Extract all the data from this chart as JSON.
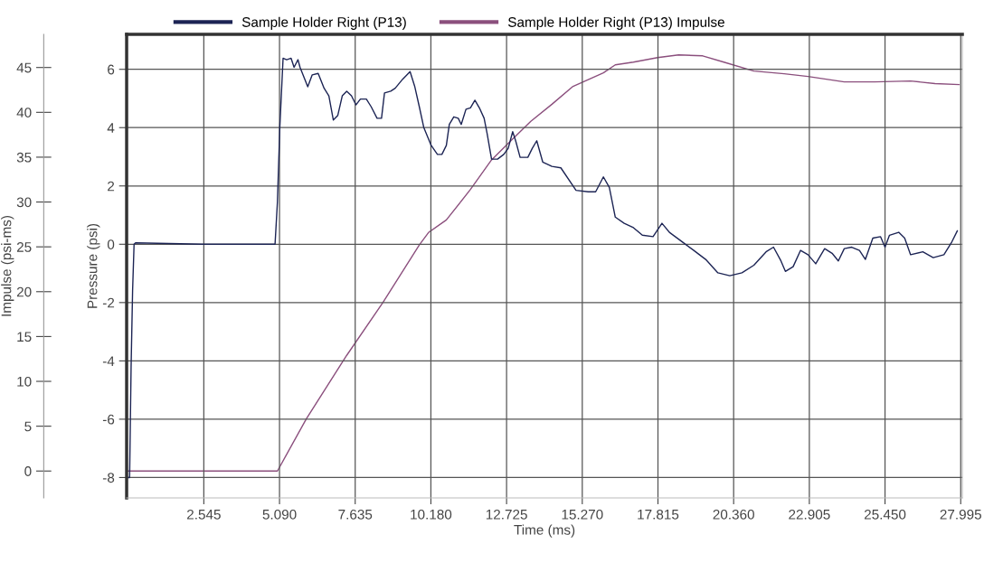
{
  "chart_data": {
    "type": "line",
    "xlabel": "Time (ms)",
    "ylabel": "Pressure (psi)",
    "y2label": "Impulse (psi-ms)",
    "xlim": [
      -0.05,
      28.05
    ],
    "xticks": [
      2.545,
      {
        "value": 5.09,
        "label": "5.090"
      },
      7.635,
      {
        "value": 10.18,
        "label": "10.180"
      },
      12.725,
      {
        "value": 15.27,
        "label": "15.270"
      },
      17.815,
      {
        "value": 20.36,
        "label": "20.360"
      },
      22.905,
      {
        "value": 25.45,
        "label": "25.450"
      },
      27.995
    ],
    "ylim": [
      -8.7,
      7.2
    ],
    "yticks": [
      -8,
      -6,
      -4,
      -2,
      0,
      2,
      4,
      6
    ],
    "y2lim": [
      -3,
      48.7
    ],
    "y2ticks": [
      0,
      5,
      10,
      15,
      20,
      25,
      30,
      35,
      40,
      45
    ],
    "grid": true,
    "legend": "top",
    "marker": "none",
    "line_style": "solid",
    "series": [
      {
        "name": "Sample Holder Right (P13)",
        "color": "#1c2454",
        "axis": "y",
        "x": [
          0,
          0.05,
          0.1,
          0.15,
          0.2,
          0.25,
          2.5,
          4.9,
          4.94,
          5.02,
          5.1,
          5.21,
          5.33,
          5.48,
          5.58,
          5.71,
          5.78,
          6.04,
          6.19,
          6.39,
          6.59,
          6.75,
          6.9,
          7.05,
          7.2,
          7.35,
          7.51,
          7.66,
          7.81,
          8.01,
          8.17,
          8.37,
          8.52,
          8.62,
          8.83,
          8.98,
          9.23,
          9.48,
          9.64,
          9.79,
          9.94,
          10.19,
          10.4,
          10.55,
          10.7,
          10.8,
          10.95,
          11.1,
          11.2,
          11.36,
          11.51,
          11.66,
          11.81,
          11.97,
          12.07,
          12.22,
          12.42,
          12.63,
          12.78,
          12.93,
          13.03,
          13.18,
          13.44,
          13.59,
          13.74,
          13.94,
          14.25,
          14.55,
          15.06,
          15.47,
          15.72,
          15.98,
          16.18,
          16.38,
          16.68,
          16.99,
          17.29,
          17.65,
          17.95,
          18.2,
          18.61,
          19.02,
          19.42,
          19.83,
          20.23,
          20.64,
          21.04,
          21.45,
          21.7,
          21.95,
          22.1,
          22.36,
          22.61,
          22.86,
          23.12,
          23.42,
          23.67,
          23.88,
          24.08,
          24.33,
          24.59,
          24.79,
          25.04,
          25.3,
          25.45,
          25.6,
          25.91,
          26.11,
          26.31,
          26.72,
          27.07,
          27.43,
          27.68,
          27.88
        ],
        "values": [
          -8.0,
          -8.0,
          -4.2,
          -1.6,
          0.0,
          0.05,
          0.0,
          0.0,
          0.0,
          1.45,
          4.0,
          6.38,
          6.33,
          6.38,
          6.07,
          6.33,
          6.07,
          5.4,
          5.81,
          5.86,
          5.35,
          5.09,
          4.26,
          4.42,
          5.09,
          5.25,
          5.09,
          4.78,
          4.98,
          4.98,
          4.72,
          4.32,
          4.32,
          5.19,
          5.25,
          5.35,
          5.66,
          5.92,
          5.4,
          4.72,
          4.01,
          3.39,
          3.08,
          3.08,
          3.39,
          4.11,
          4.37,
          4.32,
          4.11,
          4.63,
          4.68,
          4.94,
          4.68,
          4.32,
          3.8,
          2.92,
          2.92,
          3.08,
          3.29,
          3.86,
          3.55,
          2.98,
          2.98,
          3.29,
          3.55,
          2.82,
          2.67,
          2.62,
          1.85,
          1.8,
          1.8,
          2.31,
          1.95,
          0.93,
          0.72,
          0.57,
          0.31,
          0.26,
          0.72,
          0.41,
          0.1,
          -0.21,
          -0.52,
          -0.98,
          -1.08,
          -0.98,
          -0.72,
          -0.26,
          -0.1,
          -0.57,
          -0.93,
          -0.77,
          -0.21,
          -0.36,
          -0.67,
          -0.15,
          -0.31,
          -0.57,
          -0.15,
          -0.1,
          -0.21,
          -0.52,
          0.21,
          0.26,
          -0.1,
          0.31,
          0.41,
          0.21,
          -0.36,
          -0.26,
          -0.46,
          -0.36,
          0.05,
          0.46
        ]
      },
      {
        "name": "Sample Holder Right (P13) Impulse",
        "color": "#8b4f7d",
        "axis": "y2",
        "x": [
          0,
          4.94,
          5.02,
          5.99,
          7.35,
          8.57,
          9.79,
          10.1,
          10.7,
          11.51,
          12.22,
          12.83,
          13.54,
          14.25,
          14.96,
          15.98,
          16.38,
          16.99,
          17.8,
          18.51,
          19.32,
          20.03,
          21.04,
          22.06,
          22.86,
          24.08,
          25.1,
          26.31,
          27.13,
          27.94
        ],
        "values": [
          0,
          0,
          0,
          5.8,
          12.9,
          18.8,
          25.2,
          26.6,
          28.0,
          31.4,
          34.7,
          36.7,
          39.0,
          40.9,
          42.9,
          44.4,
          45.3,
          45.6,
          46.1,
          46.4,
          46.3,
          45.6,
          44.6,
          44.3,
          44.0,
          43.4,
          43.4,
          43.5,
          43.2,
          43.1
        ]
      }
    ]
  }
}
